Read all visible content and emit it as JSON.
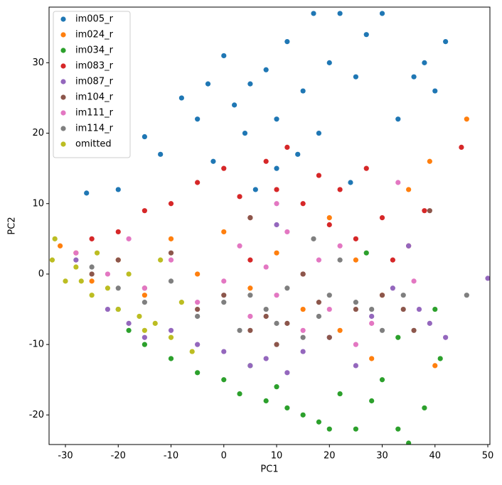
{
  "chart_data": {
    "type": "scatter",
    "xlabel": "PC1",
    "ylabel": "PC2",
    "xlim": [
      -33.1,
      50.4
    ],
    "ylim": [
      -24.2,
      37.9
    ],
    "xticks": [
      -30,
      -20,
      -10,
      0,
      10,
      20,
      30,
      40,
      50
    ],
    "yticks": [
      -20,
      -10,
      0,
      10,
      20,
      30
    ],
    "legend": "upper left",
    "series": [
      {
        "name": "im005_r",
        "color": "#1f77b4",
        "x": [
          -26,
          -20,
          -15,
          -12,
          -8,
          -5,
          -3,
          0,
          2,
          4,
          5,
          8,
          10,
          12,
          15,
          17,
          18,
          20,
          22,
          25,
          27,
          30,
          33,
          36,
          38,
          40,
          42,
          10,
          -2,
          6,
          14,
          24
        ],
        "values": [
          11.5,
          12,
          19.5,
          17,
          25,
          22,
          27,
          31,
          24,
          20,
          27,
          29,
          22,
          33,
          26,
          37,
          20,
          30,
          37,
          28,
          34,
          37,
          22,
          28,
          30,
          26,
          33,
          15,
          16,
          12,
          17,
          13
        ]
      },
      {
        "name": "im024_r",
        "color": "#ff7f0e",
        "x": [
          -31,
          -28,
          -25,
          -20,
          -15,
          -10,
          -5,
          0,
          5,
          10,
          15,
          20,
          22,
          25,
          28,
          35,
          39,
          40,
          46,
          30
        ],
        "values": [
          4,
          3,
          -1,
          2,
          -3,
          5,
          0,
          6,
          -2,
          3,
          -5,
          8,
          -8,
          2,
          -12,
          12,
          16,
          -13,
          22,
          -3
        ]
      },
      {
        "name": "im034_r",
        "color": "#2ca02c",
        "x": [
          -20,
          -18,
          -15,
          -10,
          -5,
          0,
          3,
          5,
          8,
          10,
          12,
          15,
          18,
          20,
          22,
          25,
          28,
          30,
          33,
          35,
          38,
          40,
          41,
          33,
          27
        ],
        "values": [
          -5,
          -8,
          -10,
          -12,
          -14,
          -15,
          -17,
          -13,
          -18,
          -16,
          -19,
          -20,
          -21,
          -22,
          -17,
          -22,
          -18,
          -15,
          -22,
          -24,
          -19,
          -5,
          -12,
          -9,
          3
        ]
      },
      {
        "name": "im083_r",
        "color": "#d62728",
        "x": [
          -25,
          -20,
          -15,
          -10,
          -5,
          0,
          3,
          5,
          8,
          10,
          12,
          15,
          18,
          20,
          22,
          25,
          27,
          30,
          32,
          35,
          38,
          45,
          5,
          15
        ],
        "values": [
          5,
          6,
          9,
          10,
          13,
          15,
          11,
          8,
          16,
          12,
          18,
          10,
          14,
          7,
          12,
          5,
          15,
          8,
          2,
          4,
          9,
          18,
          2,
          0
        ]
      },
      {
        "name": "im087_r",
        "color": "#9467bd",
        "x": [
          -28,
          -22,
          -18,
          -15,
          -10,
          -5,
          0,
          5,
          8,
          12,
          15,
          20,
          25,
          28,
          32,
          35,
          37,
          39,
          42,
          50,
          10
        ],
        "values": [
          2,
          -5,
          -7,
          -9,
          -8,
          -10,
          -11,
          -13,
          -12,
          -14,
          -11,
          -9,
          -13,
          -6,
          -2,
          4,
          -5,
          -7,
          -9,
          -0.6,
          7
        ]
      },
      {
        "name": "im104_r",
        "color": "#8c564b",
        "x": [
          -25,
          -20,
          -15,
          -10,
          -5,
          0,
          5,
          8,
          10,
          12,
          15,
          18,
          20,
          25,
          30,
          34,
          36,
          39,
          5
        ],
        "values": [
          0,
          2,
          -2,
          3,
          -5,
          -3,
          -8,
          -6,
          -10,
          -7,
          0,
          -4,
          -9,
          -5,
          -3,
          -5,
          -8,
          9,
          8
        ]
      },
      {
        "name": "im111_r",
        "color": "#e377c2",
        "x": [
          -28,
          -22,
          -18,
          -15,
          -10,
          -5,
          0,
          3,
          5,
          8,
          10,
          12,
          15,
          18,
          20,
          22,
          25,
          28,
          33,
          36,
          10
        ],
        "values": [
          3,
          0,
          5,
          -2,
          2,
          -4,
          -1,
          4,
          -6,
          1,
          -3,
          6,
          -8,
          2,
          -5,
          4,
          -10,
          -7,
          13,
          -1,
          10
        ]
      },
      {
        "name": "im114_r",
        "color": "#7f7f7f",
        "x": [
          -25,
          -20,
          -15,
          -10,
          -5,
          0,
          3,
          5,
          8,
          10,
          12,
          15,
          18,
          20,
          22,
          25,
          28,
          30,
          34,
          46,
          17
        ],
        "values": [
          1,
          -2,
          -4,
          -1,
          -6,
          -4,
          -8,
          -3,
          -5,
          -7,
          -2,
          -9,
          -6,
          -3,
          2,
          -4,
          -5,
          -8,
          -3,
          -3,
          5
        ]
      },
      {
        "name": "omitted",
        "color": "#bcbd22",
        "x": [
          -32,
          -32.5,
          -30,
          -28,
          -25,
          -22,
          -20,
          -18,
          -16,
          -13,
          -10,
          -8,
          -6,
          -12,
          -15,
          -24,
          -27
        ],
        "values": [
          5,
          2,
          -1,
          1,
          -3,
          -2,
          -5,
          0,
          -6,
          -7,
          -9,
          -4,
          -11,
          2,
          -8,
          3,
          -1
        ]
      }
    ]
  }
}
